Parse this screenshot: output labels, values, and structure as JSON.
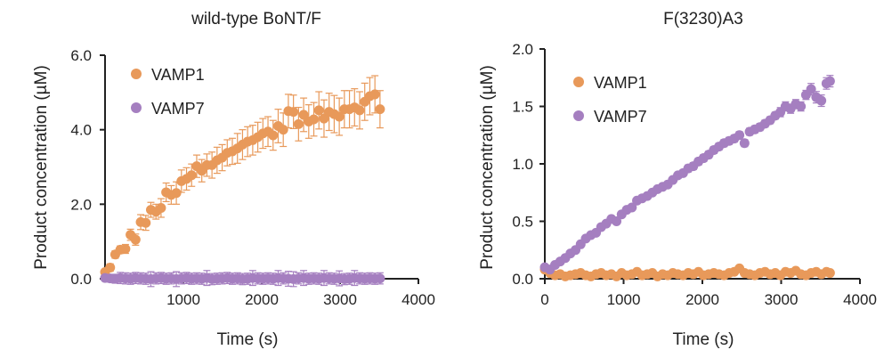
{
  "chart_data": [
    {
      "type": "scatter",
      "title": "wild-type BoNT/F",
      "xlabel": "Time (s)",
      "ylabel": "Product concentration (µM)",
      "xlim": [
        0,
        4000
      ],
      "ylim": [
        0,
        6
      ],
      "x_ticks": [
        1000,
        2000,
        3000,
        4000
      ],
      "x_tick_labels": [
        "1000",
        "2000",
        "3000",
        "4000"
      ],
      "y_ticks": [
        0,
        2,
        4,
        6
      ],
      "y_tick_labels": [
        "0.0",
        "2.0",
        "4.0",
        "6.0"
      ],
      "legend_position": "top-left",
      "error_bars": true,
      "series": [
        {
          "name": "VAMP1",
          "color": "#E8995A",
          "x": [
            0,
            65,
            130,
            195,
            260,
            325,
            390,
            455,
            520,
            585,
            650,
            715,
            780,
            845,
            910,
            975,
            1040,
            1105,
            1170,
            1235,
            1300,
            1365,
            1430,
            1495,
            1560,
            1625,
            1690,
            1755,
            1820,
            1885,
            1950,
            2015,
            2080,
            2145,
            2210,
            2275,
            2340,
            2405,
            2470,
            2535,
            2600,
            2665,
            2730,
            2795,
            2860,
            2925,
            2990,
            3055,
            3120,
            3185,
            3250,
            3315,
            3380,
            3445,
            3510
          ],
          "y": [
            0.18,
            0.3,
            0.65,
            0.78,
            0.8,
            1.18,
            1.05,
            1.52,
            1.5,
            1.85,
            1.8,
            1.9,
            2.32,
            2.25,
            2.3,
            2.62,
            2.68,
            2.78,
            3.02,
            2.9,
            3.05,
            3.05,
            3.18,
            3.25,
            3.38,
            3.42,
            3.5,
            3.6,
            3.68,
            3.72,
            3.8,
            3.9,
            3.95,
            3.85,
            4.1,
            4.0,
            4.5,
            4.48,
            4.15,
            4.4,
            4.22,
            4.28,
            4.52,
            4.3,
            4.48,
            4.42,
            4.35,
            4.55,
            4.55,
            4.6,
            4.52,
            4.75,
            4.9,
            4.95,
            4.55
          ],
          "err": [
            0.05,
            0.1,
            0.1,
            0.1,
            0.12,
            0.15,
            0.15,
            0.2,
            0.2,
            0.2,
            0.2,
            0.25,
            0.25,
            0.25,
            0.3,
            0.3,
            0.3,
            0.3,
            0.3,
            0.3,
            0.3,
            0.35,
            0.35,
            0.35,
            0.35,
            0.35,
            0.4,
            0.4,
            0.4,
            0.4,
            0.4,
            0.4,
            0.4,
            0.4,
            0.45,
            0.45,
            0.45,
            0.45,
            0.45,
            0.45,
            0.45,
            0.45,
            0.5,
            0.5,
            0.5,
            0.5,
            0.5,
            0.5,
            0.5,
            0.5,
            0.5,
            0.5,
            0.5,
            0.5,
            0.5
          ]
        },
        {
          "name": "VAMP7",
          "color": "#A57FC0",
          "x": [
            0,
            65,
            130,
            195,
            260,
            325,
            390,
            455,
            520,
            585,
            650,
            715,
            780,
            845,
            910,
            975,
            1040,
            1105,
            1170,
            1235,
            1300,
            1365,
            1430,
            1495,
            1560,
            1625,
            1690,
            1755,
            1820,
            1885,
            1950,
            2015,
            2080,
            2145,
            2210,
            2275,
            2340,
            2405,
            2470,
            2535,
            2600,
            2665,
            2730,
            2795,
            2860,
            2925,
            2990,
            3055,
            3120,
            3185,
            3250,
            3315,
            3380,
            3445,
            3510
          ],
          "y": [
            0.02,
            0.01,
            0.0,
            0.02,
            0.01,
            0.0,
            0.02,
            0.01,
            0.0,
            -0.01,
            0.01,
            0.02,
            0.0,
            0.01,
            -0.01,
            0.01,
            0.02,
            0.0,
            0.01,
            0.0,
            0.02,
            -0.01,
            0.0,
            0.01,
            0.02,
            0.0,
            0.01,
            -0.01,
            0.0,
            0.02,
            0.01,
            0.0,
            0.01,
            0.0,
            0.02,
            0.01,
            0.0,
            -0.01,
            0.01,
            0.02,
            0.0,
            0.01,
            0.0,
            0.02,
            0.01,
            0.0,
            0.01,
            -0.01,
            0.0,
            0.02,
            0.01,
            0.0,
            0.01,
            0.0,
            0.01
          ],
          "err": [
            0.05,
            0.1,
            0.12,
            0.15,
            0.15,
            0.15,
            0.15,
            0.15,
            0.15,
            0.2,
            0.15,
            0.15,
            0.15,
            0.15,
            0.2,
            0.15,
            0.15,
            0.15,
            0.15,
            0.15,
            0.2,
            0.15,
            0.15,
            0.15,
            0.15,
            0.15,
            0.15,
            0.15,
            0.15,
            0.2,
            0.15,
            0.15,
            0.15,
            0.15,
            0.2,
            0.15,
            0.2,
            0.2,
            0.15,
            0.2,
            0.15,
            0.15,
            0.15,
            0.2,
            0.15,
            0.15,
            0.2,
            0.15,
            0.15,
            0.2,
            0.15,
            0.15,
            0.15,
            0.15,
            0.15
          ]
        }
      ]
    },
    {
      "type": "scatter",
      "title": "F(3230)A3",
      "xlabel": "Time (s)",
      "ylabel": "Product concentration (µM)",
      "xlim": [
        0,
        4000
      ],
      "ylim": [
        0,
        2.0
      ],
      "x_ticks": [
        0,
        1000,
        2000,
        3000,
        4000
      ],
      "x_tick_labels": [
        "0",
        "1000",
        "2000",
        "3000",
        "4000"
      ],
      "y_ticks": [
        0,
        0.5,
        1.0,
        1.5,
        2.0
      ],
      "y_tick_labels": [
        "0.0",
        "0.5",
        "1.0",
        "1.5",
        "2.0"
      ],
      "legend_position": "top-left",
      "error_bars": true,
      "series": [
        {
          "name": "VAMP1",
          "color": "#E8995A",
          "x": [
            0,
            65,
            130,
            195,
            260,
            325,
            390,
            455,
            520,
            585,
            650,
            715,
            780,
            845,
            910,
            975,
            1040,
            1105,
            1170,
            1235,
            1300,
            1365,
            1430,
            1495,
            1560,
            1625,
            1690,
            1755,
            1820,
            1885,
            1950,
            2015,
            2080,
            2145,
            2210,
            2275,
            2340,
            2405,
            2470,
            2535,
            2600,
            2665,
            2730,
            2795,
            2860,
            2925,
            2990,
            3055,
            3120,
            3185,
            3250,
            3315,
            3380,
            3445,
            3510,
            3575,
            3620
          ],
          "y": [
            0.08,
            0.05,
            0.03,
            0.04,
            0.02,
            0.03,
            0.04,
            0.05,
            0.03,
            0.02,
            0.04,
            0.05,
            0.03,
            0.04,
            0.02,
            0.05,
            0.03,
            0.04,
            0.06,
            0.03,
            0.04,
            0.05,
            0.02,
            0.04,
            0.03,
            0.05,
            0.04,
            0.03,
            0.05,
            0.04,
            0.06,
            0.03,
            0.04,
            0.05,
            0.04,
            0.03,
            0.05,
            0.06,
            0.09,
            0.05,
            0.04,
            0.03,
            0.05,
            0.06,
            0.04,
            0.05,
            0.03,
            0.06,
            0.05,
            0.07,
            0.04,
            0.03,
            0.05,
            0.06,
            0.04,
            0.06,
            0.05
          ],
          "err": [
            0.01,
            0.01,
            0.01,
            0.01,
            0.01,
            0.01,
            0.01,
            0.01,
            0.01,
            0.01,
            0.01,
            0.01,
            0.01,
            0.01,
            0.01,
            0.01,
            0.01,
            0.01,
            0.01,
            0.01,
            0.01,
            0.01,
            0.01,
            0.01,
            0.01,
            0.01,
            0.01,
            0.01,
            0.01,
            0.01,
            0.01,
            0.01,
            0.01,
            0.01,
            0.01,
            0.01,
            0.01,
            0.01,
            0.01,
            0.01,
            0.01,
            0.01,
            0.01,
            0.01,
            0.01,
            0.01,
            0.01,
            0.01,
            0.01,
            0.01,
            0.01,
            0.01,
            0.01,
            0.01,
            0.01,
            0.01,
            0.01
          ]
        },
        {
          "name": "VAMP7",
          "color": "#A57FC0",
          "x": [
            0,
            65,
            130,
            195,
            260,
            325,
            390,
            455,
            520,
            585,
            650,
            715,
            780,
            845,
            910,
            975,
            1040,
            1105,
            1170,
            1235,
            1300,
            1365,
            1430,
            1495,
            1560,
            1625,
            1690,
            1755,
            1820,
            1885,
            1950,
            2015,
            2080,
            2145,
            2210,
            2275,
            2340,
            2405,
            2470,
            2535,
            2600,
            2665,
            2730,
            2795,
            2860,
            2925,
            2990,
            3055,
            3120,
            3185,
            3250,
            3315,
            3380,
            3445,
            3510,
            3575,
            3620
          ],
          "y": [
            0.1,
            0.08,
            0.12,
            0.15,
            0.18,
            0.22,
            0.25,
            0.3,
            0.35,
            0.38,
            0.4,
            0.45,
            0.48,
            0.52,
            0.5,
            0.56,
            0.6,
            0.62,
            0.68,
            0.7,
            0.72,
            0.75,
            0.78,
            0.8,
            0.82,
            0.86,
            0.9,
            0.92,
            0.96,
            0.98,
            1.02,
            1.05,
            1.08,
            1.12,
            1.15,
            1.18,
            1.2,
            1.22,
            1.25,
            1.18,
            1.28,
            1.3,
            1.32,
            1.35,
            1.38,
            1.42,
            1.45,
            1.5,
            1.48,
            1.52,
            1.5,
            1.6,
            1.65,
            1.58,
            1.55,
            1.7,
            1.72
          ],
          "err": [
            0.02,
            0.02,
            0.02,
            0.02,
            0.02,
            0.02,
            0.02,
            0.02,
            0.02,
            0.02,
            0.02,
            0.02,
            0.02,
            0.02,
            0.02,
            0.02,
            0.02,
            0.02,
            0.02,
            0.02,
            0.02,
            0.02,
            0.02,
            0.02,
            0.02,
            0.02,
            0.02,
            0.02,
            0.03,
            0.03,
            0.03,
            0.03,
            0.03,
            0.03,
            0.03,
            0.03,
            0.03,
            0.03,
            0.03,
            0.03,
            0.03,
            0.03,
            0.03,
            0.03,
            0.03,
            0.03,
            0.04,
            0.04,
            0.04,
            0.04,
            0.04,
            0.04,
            0.05,
            0.05,
            0.05,
            0.05,
            0.05
          ]
        }
      ]
    }
  ]
}
